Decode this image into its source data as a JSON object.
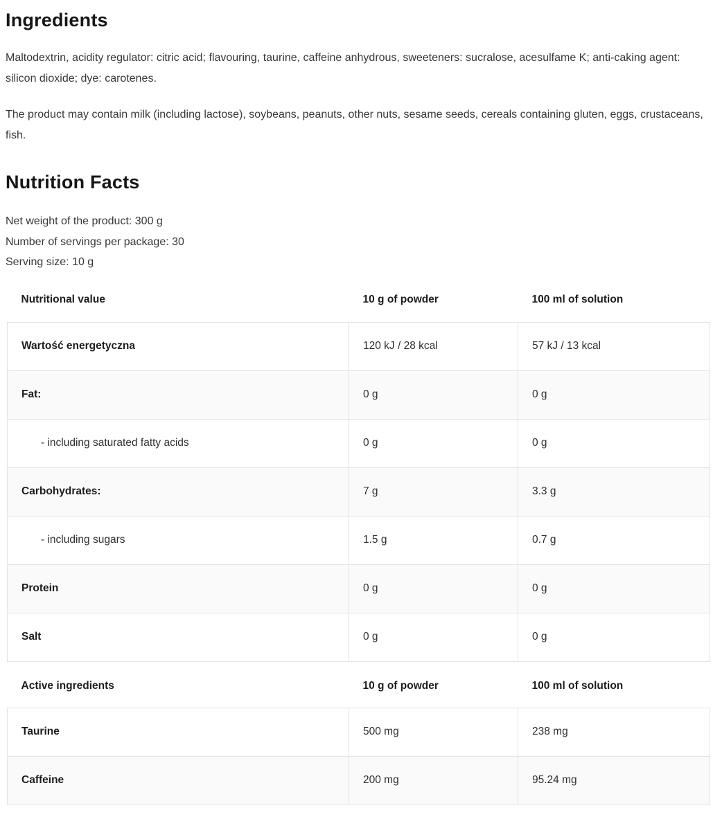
{
  "ingredients": {
    "title": "Ingredients",
    "paragraph1": "Maltodextrin, acidity regulator: citric acid; flavouring, taurine, caffeine anhydrous, sweeteners: sucralose, acesulfame K; anti-caking agent: silicon dioxide; dye: carotenes.",
    "paragraph2": "The product may contain milk (including lactose), soybeans, peanuts, other nuts, sesame seeds, cereals containing gluten, eggs, crustaceans, fish."
  },
  "nutrition": {
    "title": "Nutrition Facts",
    "net_weight": "Net weight of the product: 300 g",
    "servings": "Number of servings per package: 30",
    "serving_size": "Serving size: 10 g"
  },
  "nutritional_table": {
    "headers": {
      "label": "Nutritional value",
      "powder": "10 g of powder",
      "solution": "100 ml of solution"
    },
    "rows": [
      {
        "label": "Wartość energetyczna",
        "powder": "120 kJ / 28 kcal",
        "solution": "57 kJ / 13 kcal"
      },
      {
        "label": "Fat:",
        "powder": "0 g",
        "solution": "0 g"
      },
      {
        "label": "- including saturated fatty acids",
        "powder": "0 g",
        "solution": "0 g"
      },
      {
        "label": "Carbohydrates:",
        "powder": "7 g",
        "solution": "3.3 g"
      },
      {
        "label": "- including sugars",
        "powder": "1.5 g",
        "solution": "0.7 g"
      },
      {
        "label": "Protein",
        "powder": "0 g",
        "solution": "0 g"
      },
      {
        "label": "Salt",
        "powder": "0 g",
        "solution": "0 g"
      }
    ]
  },
  "active_table": {
    "headers": {
      "label": "Active ingredients",
      "powder": "10 g of powder",
      "solution": "100 ml of solution"
    },
    "rows": [
      {
        "label": "Taurine",
        "powder": "500 mg",
        "solution": "238 mg"
      },
      {
        "label": "Caffeine",
        "powder": "200 mg",
        "solution": "95.24 mg"
      }
    ]
  },
  "colors": {
    "border": "#e3e3e3",
    "row_alt_bg": "#fafafa",
    "heading_text": "#161616",
    "body_text": "#383838"
  }
}
